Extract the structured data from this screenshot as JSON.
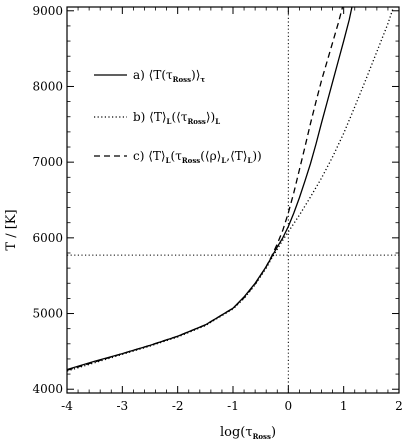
{
  "chart_data": {
    "type": "line",
    "xlabel": "log(τ",
    "xlabel_sub": "Ross",
    "xlabel_close": ")",
    "ylabel": "T / [K]",
    "xlim": [
      -4,
      2
    ],
    "ylim": [
      3950,
      9050
    ],
    "xticks": [
      -4,
      -3,
      -2,
      -1,
      0,
      1,
      2
    ],
    "yticks": [
      4000,
      5000,
      6000,
      7000,
      8000,
      9000
    ],
    "legend_position": "upper-left",
    "reference_lines": {
      "vertical_x": 0,
      "horizontal_y": 5772,
      "style": "dotted"
    },
    "series": [
      {
        "name": "a) ⟨T(τ_Ross)⟩_τ",
        "legend": {
          "prefix": "a)  ⟨T(τ",
          "sub1": "Ross",
          "mid": ")⟩",
          "sub2": "τ",
          "suffix": ""
        },
        "style": "solid",
        "x": [
          -4.0,
          -3.5,
          -3.0,
          -2.5,
          -2.0,
          -1.5,
          -1.0,
          -0.8,
          -0.6,
          -0.4,
          -0.3,
          -0.2,
          -0.1,
          0.0,
          0.1,
          0.2,
          0.3,
          0.4,
          0.5,
          0.6,
          0.7,
          0.8,
          0.9,
          1.0,
          1.1,
          1.15
        ],
        "y": [
          4260,
          4370,
          4470,
          4580,
          4700,
          4850,
          5070,
          5220,
          5400,
          5620,
          5750,
          5880,
          6000,
          6150,
          6330,
          6530,
          6750,
          6980,
          7240,
          7520,
          7790,
          8060,
          8330,
          8600,
          8880,
          9050
        ]
      },
      {
        "name": "b) ⟨T⟩_L(⟨τ_Ross⟩_L)",
        "legend": {
          "prefix": "b)  ⟨T⟩",
          "sub1": "L",
          "mid": "(⟨τ",
          "sub2": "Ross",
          "suffix": "⟩)",
          "sub3": "L"
        },
        "style": "dotted",
        "x": [
          -4.0,
          -3.5,
          -3.0,
          -2.5,
          -2.0,
          -1.5,
          -1.0,
          -0.8,
          -0.6,
          -0.4,
          -0.3,
          -0.2,
          -0.1,
          0.0,
          0.2,
          0.4,
          0.6,
          0.8,
          1.0,
          1.2,
          1.4,
          1.6,
          1.8,
          1.9
        ],
        "y": [
          4240,
          4350,
          4460,
          4570,
          4690,
          4840,
          5060,
          5200,
          5380,
          5600,
          5730,
          5850,
          5970,
          6080,
          6300,
          6540,
          6790,
          7070,
          7380,
          7730,
          8090,
          8460,
          8830,
          9050
        ]
      },
      {
        "name": "c) ⟨T⟩_L(τ_Ross(⟨ρ⟩_L,⟨T⟩_L))",
        "legend": {
          "prefix": "c)  ⟨T⟩",
          "sub1": "L",
          "mid": "(τ",
          "sub2": "Ross",
          "suffix": "(⟨ρ⟩",
          "sub3": "L",
          "suffix2": ",⟨T⟩",
          "sub4": "L",
          "suffix3": "))"
        },
        "style": "dashed",
        "x": [
          -4.0,
          -3.5,
          -3.0,
          -2.5,
          -2.0,
          -1.5,
          -1.0,
          -0.8,
          -0.6,
          -0.4,
          -0.3,
          -0.2,
          -0.1,
          0.0,
          0.1,
          0.2,
          0.3,
          0.4,
          0.5,
          0.6,
          0.7,
          0.8,
          0.9,
          0.98
        ],
        "y": [
          4250,
          4360,
          4470,
          4580,
          4700,
          4850,
          5070,
          5210,
          5390,
          5620,
          5760,
          5920,
          6100,
          6330,
          6600,
          6900,
          7200,
          7510,
          7800,
          8080,
          8330,
          8580,
          8830,
          9050
        ]
      }
    ]
  }
}
